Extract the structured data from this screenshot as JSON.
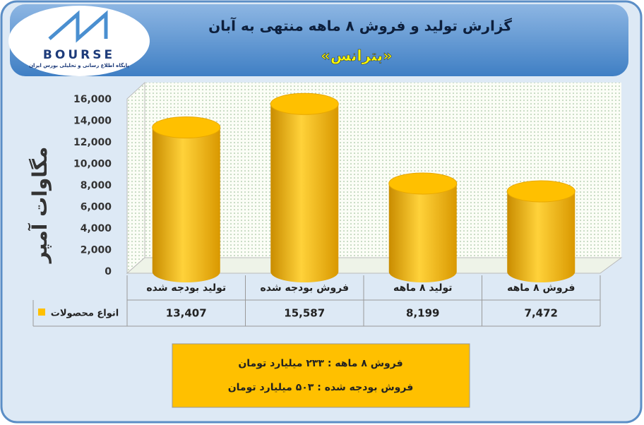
{
  "logo": {
    "name": "BOURSE",
    "tagline": "پایگاه اطلاع رسانی و تحلیلی بورس ایران"
  },
  "chart_data": {
    "type": "bar",
    "title": "گزارش تولید و فروش ۸ ماهه منتهی به آبان",
    "subtitle": "«بترانس»",
    "y_label": "مگاوات آمپر",
    "categories": [
      "تولید بودجه شده",
      "فروش بودجه شده",
      "تولید ۸ ماهه",
      "فروش ۸ ماهه"
    ],
    "series": [
      {
        "name": "انواع محصولات",
        "color": "#ffc000",
        "values": [
          13407,
          15587,
          8199,
          7472
        ],
        "value_labels": [
          "13,407",
          "15,587",
          "8,199",
          "7,472"
        ]
      }
    ],
    "ylim": [
      0,
      16000
    ],
    "yticks": [
      0,
      {
        "value": 2000,
        "label": "2,000"
      },
      {
        "value": 4000,
        "label": "4,000"
      },
      {
        "value": 6000,
        "label": "6,000"
      },
      {
        "value": 8000,
        "label": "8,000"
      },
      {
        "value": 10000,
        "label": "10,000"
      },
      {
        "value": 12000,
        "label": "12,000"
      },
      {
        "value": 14000,
        "label": "14,000"
      },
      {
        "value": 16000,
        "label": "16,000"
      }
    ]
  },
  "notes": [
    "فروش ۸ ماهه : ۲۳۳ میلیارد تومان",
    "فروش بودجه شده : ۵۰۳ میلیارد تومان"
  ]
}
